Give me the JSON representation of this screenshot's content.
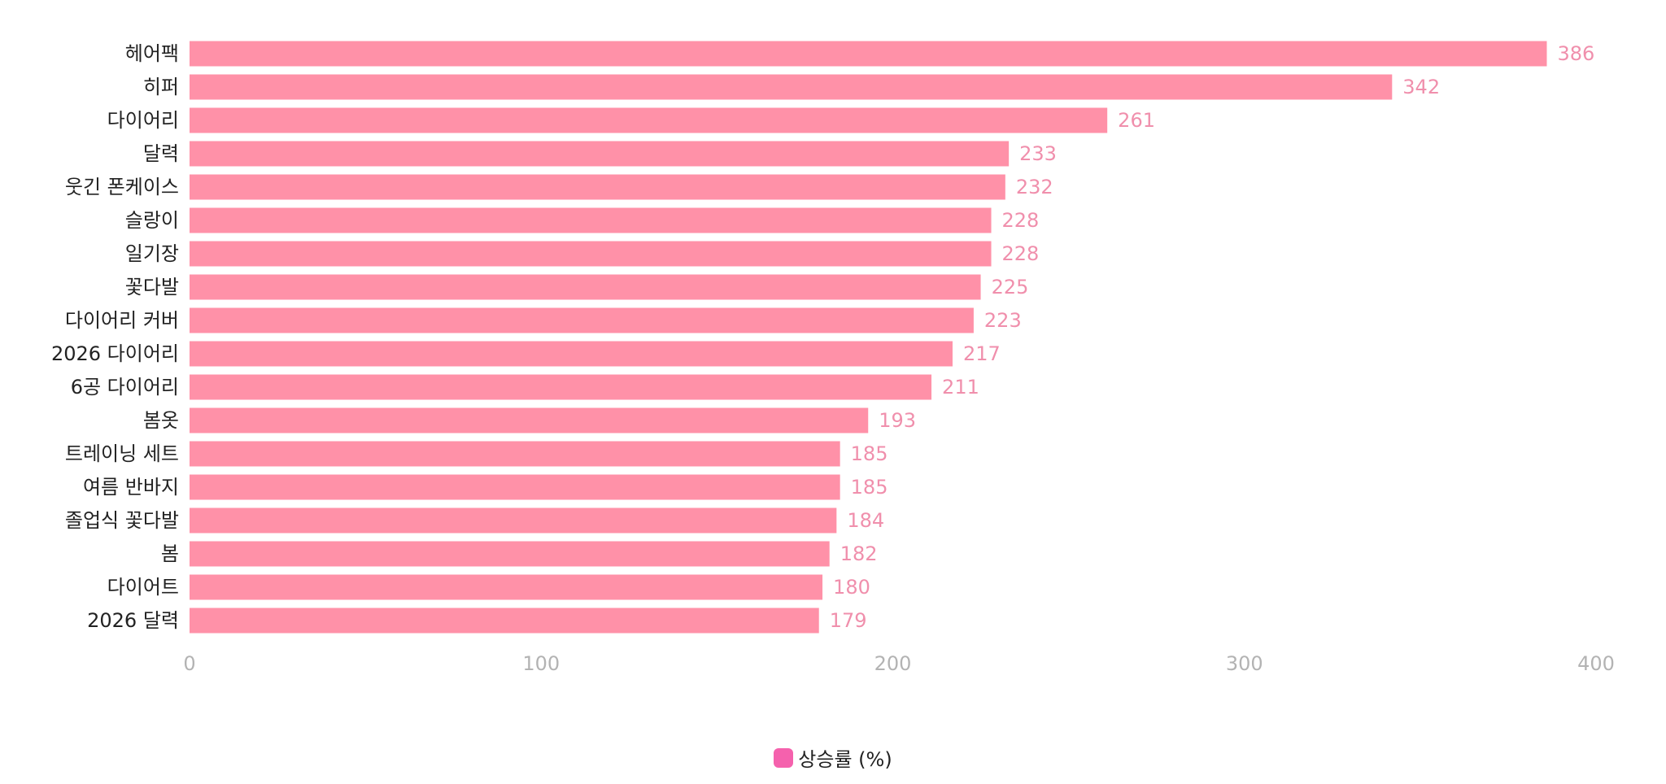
{
  "chart_data": {
    "type": "bar",
    "orientation": "horizontal",
    "categories": [
      "헤어팩",
      "히퍼",
      "다이어리",
      "달력",
      "웃긴 폰케이스",
      "슬랑이",
      "일기장",
      "꽃다발",
      "다이어리 커버",
      "2026 다이어리",
      "6공 다이어리",
      "봄옷",
      "트레이닝 세트",
      "여름 반바지",
      "졸업식 꽃다발",
      "봄",
      "다이어트",
      "2026 달력"
    ],
    "series": [
      {
        "name": "상승률 (%)",
        "values": [
          386,
          342,
          261,
          233,
          232,
          228,
          228,
          225,
          223,
          217,
          211,
          193,
          185,
          185,
          184,
          182,
          180,
          179
        ]
      }
    ],
    "data_labels": [
      "386",
      "342",
      "261",
      "233",
      "232",
      "228",
      "228",
      "225",
      "223",
      "217",
      "211",
      "193",
      "185",
      "185",
      "184",
      "182",
      "180",
      "179"
    ],
    "xlim": [
      0,
      400
    ],
    "x_ticks": [
      "0",
      "100",
      "200",
      "300",
      "400"
    ],
    "grid": false,
    "legend_position": "bottom-center",
    "colors": {
      "bar": "#ff91a8",
      "value_label": "#f08fac",
      "legend_swatch": "#f561ad",
      "tick": "#b3b3b3",
      "category": "#222222"
    }
  }
}
